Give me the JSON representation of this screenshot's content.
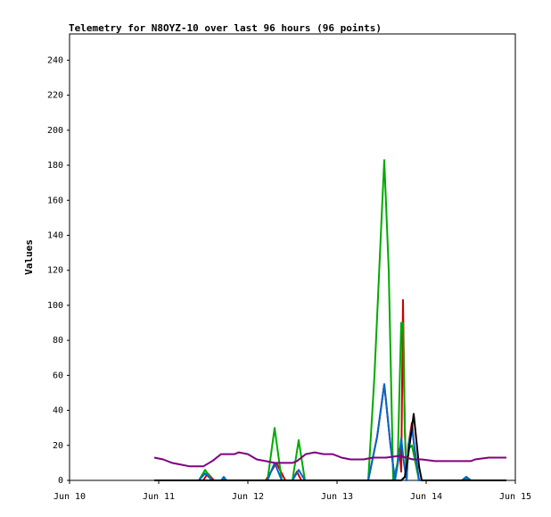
{
  "chart_data": {
    "type": "line",
    "title": "Telemetry for N8OYZ-10 over last 96 hours (96 points)",
    "xlabel": "",
    "ylabel": "Values",
    "xlim": [
      "Jun 10",
      "Jun 15"
    ],
    "ylim": [
      0,
      255
    ],
    "grid": false,
    "legend": "none",
    "x_ticks": [
      "Jun 10",
      "Jun 11",
      "Jun 12",
      "Jun 13",
      "Jun 14",
      "Jun 15"
    ],
    "y_ticks": [
      0,
      20,
      40,
      60,
      80,
      100,
      120,
      140,
      160,
      180,
      200,
      220,
      240
    ],
    "series": [
      {
        "color": "#cc0000",
        "points": [
          [
            10.95,
            0
          ],
          [
            11.5,
            0
          ],
          [
            11.55,
            4
          ],
          [
            11.62,
            0
          ],
          [
            12.2,
            0
          ],
          [
            12.32,
            10
          ],
          [
            12.42,
            0
          ],
          [
            12.5,
            0
          ],
          [
            12.55,
            5
          ],
          [
            12.6,
            0
          ],
          [
            13.35,
            0
          ],
          [
            13.45,
            25
          ],
          [
            13.53,
            55
          ],
          [
            13.6,
            20
          ],
          [
            13.65,
            0
          ],
          [
            13.7,
            18
          ],
          [
            13.72,
            5
          ],
          [
            13.74,
            103
          ],
          [
            13.76,
            30
          ],
          [
            13.78,
            0
          ],
          [
            13.8,
            20
          ],
          [
            13.84,
            33
          ],
          [
            13.88,
            12
          ],
          [
            13.92,
            0
          ],
          [
            14.4,
            0
          ],
          [
            14.45,
            2
          ],
          [
            14.5,
            0
          ],
          [
            14.9,
            0
          ]
        ]
      },
      {
        "color": "#00aa00",
        "points": [
          [
            10.95,
            0
          ],
          [
            11.45,
            0
          ],
          [
            11.52,
            6
          ],
          [
            11.6,
            0
          ],
          [
            11.7,
            0
          ],
          [
            11.73,
            1
          ],
          [
            11.76,
            0
          ],
          [
            12.22,
            0
          ],
          [
            12.3,
            30
          ],
          [
            12.38,
            0
          ],
          [
            12.5,
            0
          ],
          [
            12.57,
            23
          ],
          [
            12.64,
            0
          ],
          [
            13.35,
            0
          ],
          [
            13.42,
            60
          ],
          [
            13.5,
            150
          ],
          [
            13.53,
            183
          ],
          [
            13.58,
            120
          ],
          [
            13.63,
            0
          ],
          [
            13.68,
            10
          ],
          [
            13.72,
            90
          ],
          [
            13.74,
            90
          ],
          [
            13.76,
            30
          ],
          [
            13.78,
            0
          ],
          [
            13.8,
            18
          ],
          [
            13.84,
            20
          ],
          [
            13.88,
            10
          ],
          [
            13.92,
            0
          ],
          [
            14.4,
            0
          ],
          [
            14.45,
            1
          ],
          [
            14.5,
            0
          ],
          [
            14.9,
            0
          ]
        ]
      },
      {
        "color": "#0066cc",
        "points": [
          [
            10.95,
            0
          ],
          [
            11.45,
            0
          ],
          [
            11.52,
            4
          ],
          [
            11.6,
            0
          ],
          [
            11.7,
            0
          ],
          [
            11.73,
            2
          ],
          [
            11.76,
            0
          ],
          [
            12.22,
            0
          ],
          [
            12.3,
            10
          ],
          [
            12.38,
            0
          ],
          [
            12.5,
            0
          ],
          [
            12.57,
            6
          ],
          [
            12.64,
            0
          ],
          [
            13.35,
            0
          ],
          [
            13.45,
            25
          ],
          [
            13.53,
            55
          ],
          [
            13.6,
            20
          ],
          [
            13.65,
            0
          ],
          [
            13.7,
            15
          ],
          [
            13.72,
            24
          ],
          [
            13.75,
            10
          ],
          [
            13.78,
            0
          ],
          [
            13.8,
            20
          ],
          [
            13.84,
            30
          ],
          [
            13.88,
            15
          ],
          [
            13.92,
            0
          ],
          [
            14.4,
            0
          ],
          [
            14.45,
            2
          ],
          [
            14.5,
            0
          ],
          [
            14.9,
            0
          ]
        ]
      },
      {
        "color": "#000000",
        "points": [
          [
            10.95,
            0
          ],
          [
            13.72,
            0
          ],
          [
            13.76,
            2
          ],
          [
            13.8,
            15
          ],
          [
            13.84,
            30
          ],
          [
            13.86,
            38
          ],
          [
            13.88,
            28
          ],
          [
            13.92,
            8
          ],
          [
            13.95,
            0
          ],
          [
            14.9,
            0
          ]
        ]
      },
      {
        "color": "#800080",
        "points": [
          [
            10.95,
            13
          ],
          [
            11.05,
            12
          ],
          [
            11.15,
            10
          ],
          [
            11.25,
            9
          ],
          [
            11.35,
            8
          ],
          [
            11.5,
            8
          ],
          [
            11.6,
            11
          ],
          [
            11.7,
            15
          ],
          [
            11.85,
            15
          ],
          [
            11.9,
            16
          ],
          [
            12.0,
            15
          ],
          [
            12.1,
            12
          ],
          [
            12.2,
            11
          ],
          [
            12.3,
            10
          ],
          [
            12.4,
            10
          ],
          [
            12.5,
            10
          ],
          [
            12.55,
            11
          ],
          [
            12.65,
            15
          ],
          [
            12.75,
            16
          ],
          [
            12.85,
            15
          ],
          [
            12.95,
            15
          ],
          [
            13.05,
            13
          ],
          [
            13.15,
            12
          ],
          [
            13.3,
            12
          ],
          [
            13.4,
            13
          ],
          [
            13.55,
            13
          ],
          [
            13.7,
            14
          ],
          [
            13.85,
            12
          ],
          [
            13.95,
            12
          ],
          [
            14.1,
            11
          ],
          [
            14.3,
            11
          ],
          [
            14.5,
            11
          ],
          [
            14.55,
            12
          ],
          [
            14.7,
            13
          ],
          [
            14.9,
            13
          ]
        ]
      }
    ]
  }
}
